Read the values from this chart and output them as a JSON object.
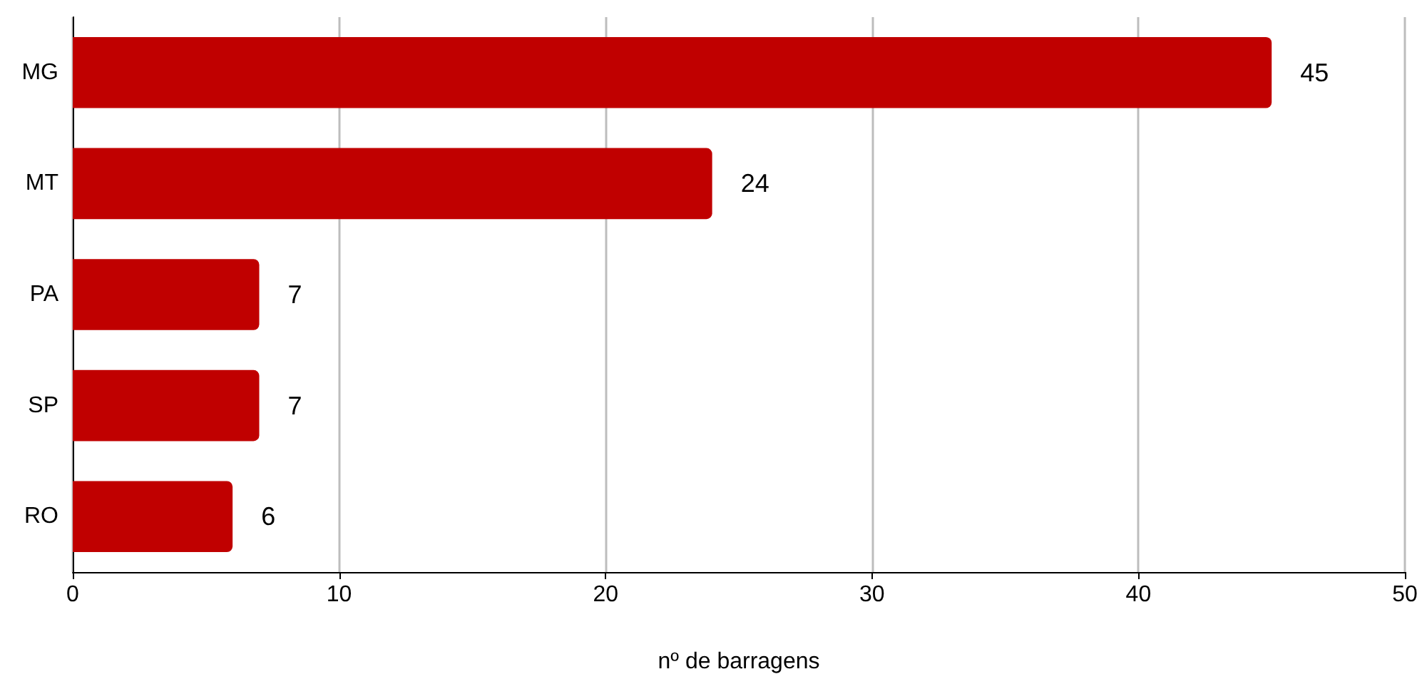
{
  "chart_data": {
    "type": "bar",
    "orientation": "horizontal",
    "xlabel": "nº de barragens",
    "categories": [
      "MG",
      "MT",
      "PA",
      "SP",
      "RO"
    ],
    "values": [
      45,
      24,
      7,
      7,
      6
    ],
    "color": "#c00000",
    "data_labels": true,
    "xlim": [
      0,
      50
    ],
    "xticks": [
      0,
      10,
      20,
      30,
      40,
      50
    ],
    "grid": "x"
  }
}
